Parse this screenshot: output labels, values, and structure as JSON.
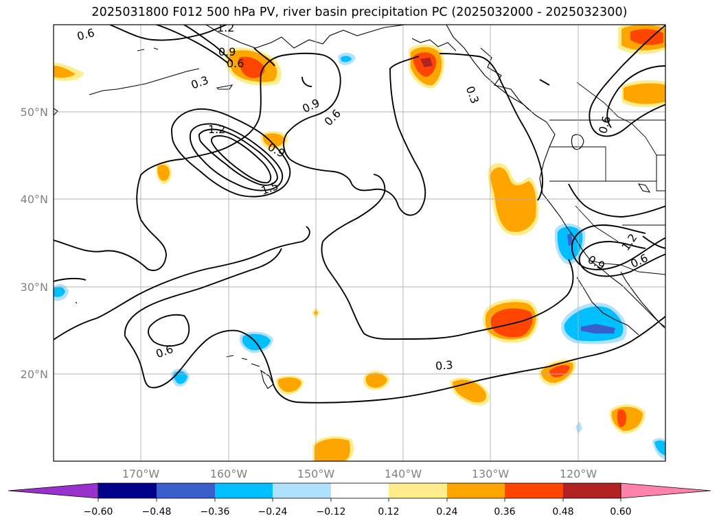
{
  "title": "2025031800 F012 500 hPa PV, river basin precipitation PC (2025032000 - 2025032300)",
  "map": {
    "lon_range": [
      -180,
      -110
    ],
    "lat_range": [
      10,
      60
    ],
    "lon_ticks": [
      "170°W",
      "160°W",
      "150°W",
      "140°W",
      "130°W",
      "120°W"
    ],
    "lat_ticks": [
      "20°N",
      "30°N",
      "40°N",
      "50°N"
    ],
    "grid": true
  },
  "pv_contour_labels": [
    "0.6",
    "1.2",
    "0.9",
    "0.6",
    "0.3",
    "0.9",
    "0.6",
    "1.2",
    "0.9",
    "1.5",
    "0.3",
    "0.6",
    "0.3",
    "1.2",
    "0.9",
    "0.6",
    "0.6"
  ],
  "colorbar": {
    "ticks": [
      "−0.60",
      "−0.48",
      "−0.36",
      "−0.24",
      "−0.12",
      "0.12",
      "0.24",
      "0.36",
      "0.48",
      "0.60"
    ],
    "colors": {
      "under": "#9932cc",
      "bins": [
        "#00008b",
        "#3a5fcd",
        "#00bfff",
        "#b0e2ff",
        "#ffffff",
        "#ffec8b",
        "#ffa500",
        "#ff4500",
        "#b22222"
      ],
      "over": "#ff82ab"
    }
  }
}
